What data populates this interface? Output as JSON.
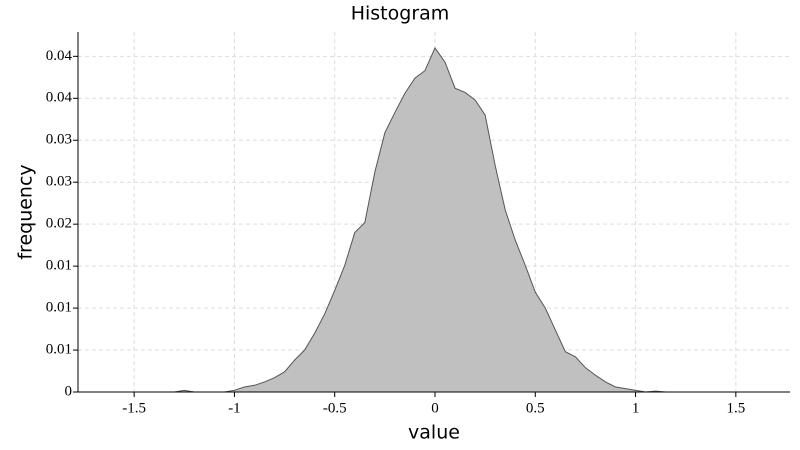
{
  "chart_data": {
    "type": "area",
    "title": "Histogram",
    "x_label": "value",
    "y_label": "frequency",
    "x": [
      -1.6,
      -1.55,
      -1.5,
      -1.45,
      -1.4,
      -1.35,
      -1.3,
      -1.25,
      -1.2,
      -1.15,
      -1.1,
      -1.05,
      -1.0,
      -0.95,
      -0.9,
      -0.85,
      -0.8,
      -0.75,
      -0.7,
      -0.65,
      -0.6,
      -0.55,
      -0.5,
      -0.45,
      -0.4,
      -0.35,
      -0.3,
      -0.25,
      -0.2,
      -0.15,
      -0.1,
      -0.05,
      0,
      0.05,
      0.1,
      0.15,
      0.2,
      0.25,
      0.3,
      0.35,
      0.4,
      0.45,
      0.5,
      0.55,
      0.6,
      0.65,
      0.7,
      0.75,
      0.8,
      0.85,
      0.9,
      0.95,
      1.0,
      1.05,
      1.1,
      1.15,
      1.2,
      1.25,
      1.3,
      1.35,
      1.4,
      1.45,
      1.5,
      1.55,
      1.6
    ],
    "values": [
      0,
      0,
      0,
      0,
      0,
      0,
      0,
      0.0002,
      0,
      0,
      0,
      0,
      0.0002,
      0.0006,
      0.0008,
      0.0012,
      0.0017,
      0.0024,
      0.0038,
      0.005,
      0.007,
      0.0093,
      0.0121,
      0.0151,
      0.019,
      0.0202,
      0.0262,
      0.0309,
      0.0333,
      0.0356,
      0.0374,
      0.0383,
      0.041,
      0.0393,
      0.0362,
      0.0357,
      0.0348,
      0.033,
      0.027,
      0.0217,
      0.0181,
      0.0151,
      0.0119,
      0.01,
      0.0074,
      0.0048,
      0.0042,
      0.0029,
      0.002,
      0.0012,
      0.0006,
      0.0004,
      0.0002,
      0,
      0.0001,
      0,
      0,
      0,
      0,
      0,
      0,
      0,
      0,
      0,
      0
    ],
    "color": "#c0c0c0",
    "line_color": "#555555",
    "xlim": [
      -1.78,
      1.77
    ],
    "xticks": [
      -1.5,
      -1,
      -0.5,
      0,
      0.5,
      1,
      1.5
    ],
    "ylim": [
      0,
      0.0429
    ],
    "yticks": [
      0,
      {
        "value": 0.005,
        "label": "0.01"
      },
      {
        "value": 0.01,
        "label": "0.01"
      },
      {
        "value": 0.015,
        "label": "0.01"
      },
      {
        "value": 0.02,
        "label": "0.02"
      },
      {
        "value": 0.025,
        "label": "0.03"
      },
      {
        "value": 0.03,
        "label": "0.03"
      },
      {
        "value": 0.035,
        "label": "0.04"
      },
      {
        "value": 0.04,
        "label": "0.04"
      }
    ],
    "grid": true
  }
}
